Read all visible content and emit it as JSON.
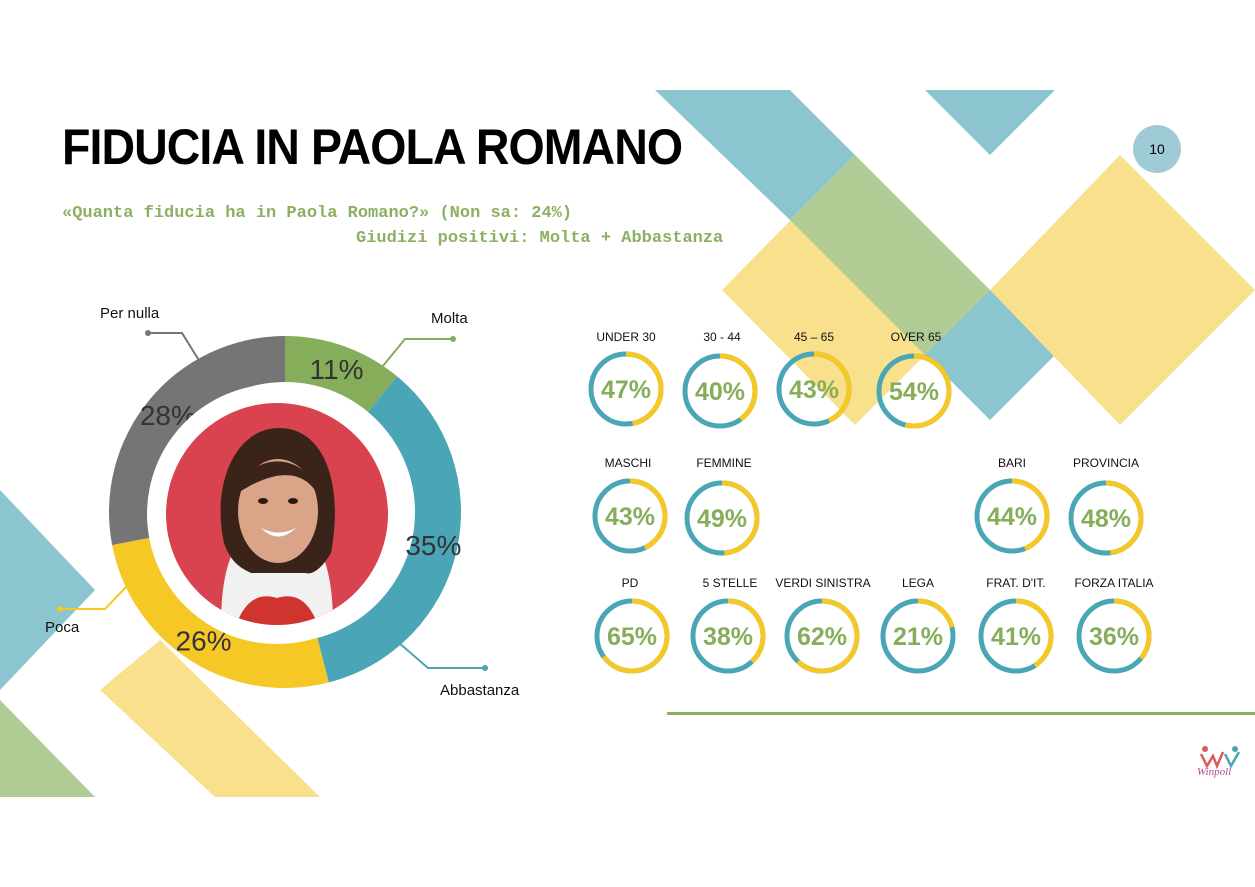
{
  "page": {
    "title": "FIDUCIA IN PAOLA ROMANO",
    "subtitle_1": "«Quanta fiducia ha in Paola Romano?» (Non sa: 24%)",
    "subtitle_2": "Giudizi positivi: Molta + Abbastanza",
    "page_number": "10",
    "logo_text": "Winpoll"
  },
  "colors": {
    "green": "#86ad5a",
    "teal": "#4aa6b6",
    "yellow": "#f5c826",
    "gray": "#757575",
    "deco_teal": "#8bc5cf",
    "deco_green": "#b0cc94",
    "deco_yellow": "#f8e08c"
  },
  "chart_data": [
    {
      "type": "pie",
      "style": "donut",
      "categories": [
        "Molta",
        "Abbastanza",
        "Poca",
        "Per nulla"
      ],
      "values": [
        11,
        35,
        26,
        28
      ],
      "value_labels": [
        "11%",
        "35%",
        "26%",
        "28%"
      ],
      "colors": [
        "#86ad5a",
        "#4aa6b6",
        "#f5c826",
        "#757575"
      ]
    },
    {
      "type": "pie",
      "style": "small-multiples-donut",
      "groups": [
        {
          "name": "UNDER 30",
          "value": 47,
          "label": "47%"
        },
        {
          "name": "30 - 44",
          "value": 40,
          "label": "40%"
        },
        {
          "name": "45 – 65",
          "value": 43,
          "label": "43%"
        },
        {
          "name": "OVER 65",
          "value": 54,
          "label": "54%"
        },
        {
          "name": "MASCHI",
          "value": 43,
          "label": "43%"
        },
        {
          "name": "FEMMINE",
          "value": 49,
          "label": "49%"
        },
        {
          "name": "BARI",
          "value": 44,
          "label": "44%"
        },
        {
          "name": "PROVINCIA",
          "value": 48,
          "label": "48%"
        },
        {
          "name": "PD",
          "value": 65,
          "label": "65%"
        },
        {
          "name": "5 STELLE",
          "value": 38,
          "label": "38%"
        },
        {
          "name": "VERDI SINISTRA",
          "value": 62,
          "label": "62%"
        },
        {
          "name": "LEGA",
          "value": 21,
          "label": "21%"
        },
        {
          "name": "FRAT. D'IT.",
          "value": 41,
          "label": "41%"
        },
        {
          "name": "FORZA ITALIA",
          "value": 36,
          "label": "36%"
        }
      ],
      "positive_color": "#f5c826",
      "rest_color": "#4aa6b6"
    }
  ]
}
